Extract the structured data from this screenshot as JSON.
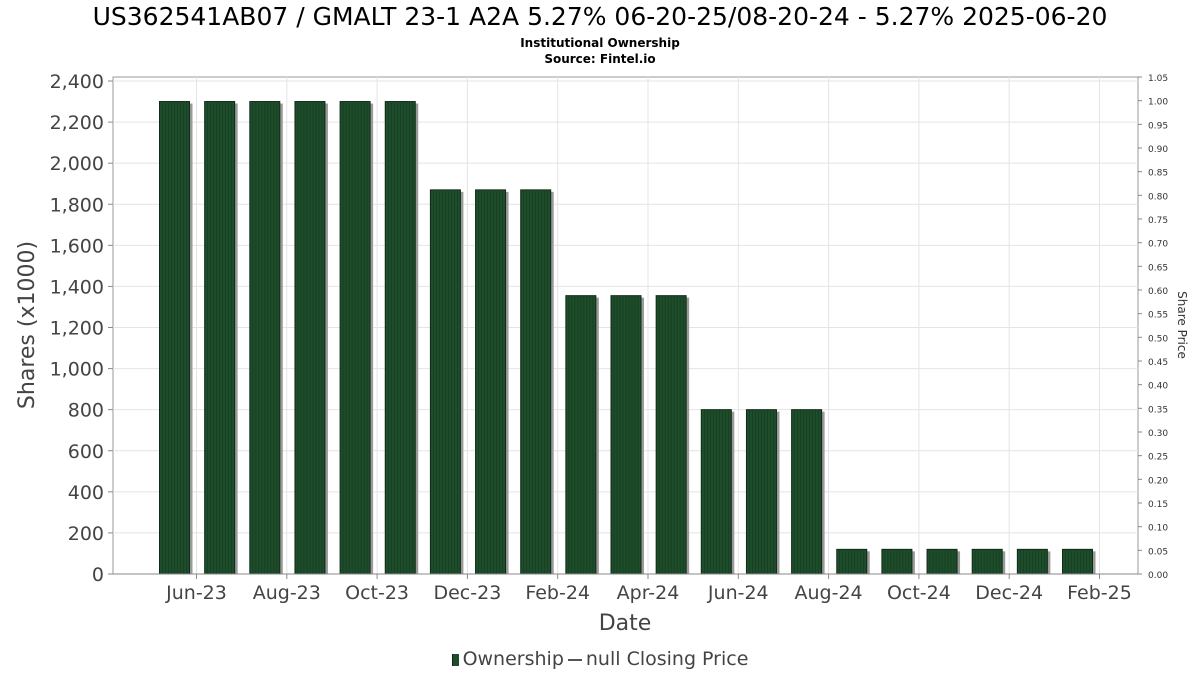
{
  "chart_data": {
    "type": "bar",
    "title": "US362541AB07 / GMALT 23-1 A2A 5.27% 06-20-25/08-20-24 - 5.27% 2025-06-20",
    "subtitle": "Institutional Ownership",
    "source": "Source: Fintel.io",
    "xlabel": "Date",
    "ylabel": "Shares (x1000)",
    "y2label": "Share Price",
    "ylim": [
      0,
      2400
    ],
    "y2lim": [
      0,
      1.05
    ],
    "yticks": [
      "0",
      "200",
      "400",
      "600",
      "800",
      "1,000",
      "1,200",
      "1,400",
      "1,600",
      "1,800",
      "2,000",
      "2,200",
      "2,400"
    ],
    "y2ticks": [
      "0.00",
      "0.05",
      "0.10",
      "0.15",
      "0.20",
      "0.25",
      "0.30",
      "0.35",
      "0.40",
      "0.45",
      "0.50",
      "0.55",
      "0.60",
      "0.65",
      "0.70",
      "0.75",
      "0.80",
      "0.85",
      "0.90",
      "0.95",
      "1.00",
      "1.05"
    ],
    "xticks": [
      "Jun-23",
      "Aug-23",
      "Oct-23",
      "Dec-23",
      "Feb-24",
      "Apr-24",
      "Jun-24",
      "Aug-24",
      "Oct-24",
      "Dec-24",
      "Feb-25"
    ],
    "grid": true,
    "legend_position": "bottom",
    "series": [
      {
        "name": "Ownership",
        "color": "#1e4d2b",
        "values": [
          2300,
          2300,
          2300,
          2300,
          2300,
          2300,
          1870,
          1870,
          1870,
          1355,
          1355,
          1355,
          800,
          800,
          800,
          120,
          120,
          120,
          120,
          120,
          120
        ]
      }
    ],
    "legend": {
      "ownership_label": "Ownership",
      "price_label": "null Closing Price"
    }
  }
}
